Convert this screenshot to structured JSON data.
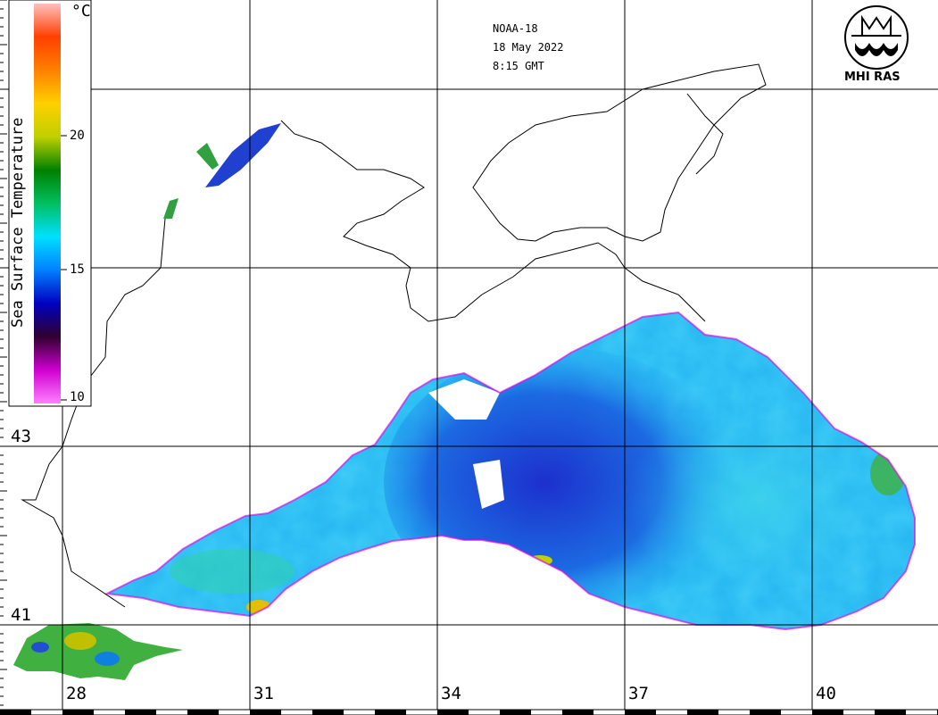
{
  "satellite": "NOAA-18",
  "date": "18 May 2022",
  "time": "8:15 GMT",
  "logo_text": "MHI RAS",
  "scale": {
    "title": "Sea Surface Temperature",
    "unit": "°C",
    "ticks": [
      "20",
      "15",
      "10"
    ],
    "range": [
      10,
      25
    ],
    "colors": [
      "#ff80ff",
      "#d000d0",
      "#300030",
      "#0000c0",
      "#0080ff",
      "#00e0ff",
      "#00c060",
      "#008000",
      "#c0d000",
      "#ffd000",
      "#ff8000",
      "#ff4000",
      "#ffc0c0"
    ]
  },
  "grid": {
    "latitudes": [
      "43",
      "41"
    ],
    "longitudes": [
      "28",
      "31",
      "34",
      "37",
      "40"
    ]
  },
  "colors": {
    "land": "#ffffff",
    "coast": "#000000",
    "cloud_edge": "#e000e0",
    "sea_main": "#10a8f0",
    "sea_deep": "#1030d0"
  }
}
